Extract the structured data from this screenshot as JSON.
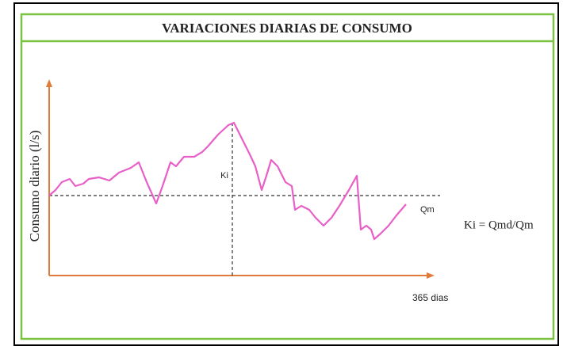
{
  "header": {
    "title": "VARIACIONES DIARIAS DE CONSUMO"
  },
  "diagram": {
    "y_axis_label": "Consumo diario (l/s)",
    "x_axis_label": "365 dias",
    "peak_label": "Ki",
    "mean_label": "Qm",
    "formula": "Ki = Qmd/Qm"
  }
}
